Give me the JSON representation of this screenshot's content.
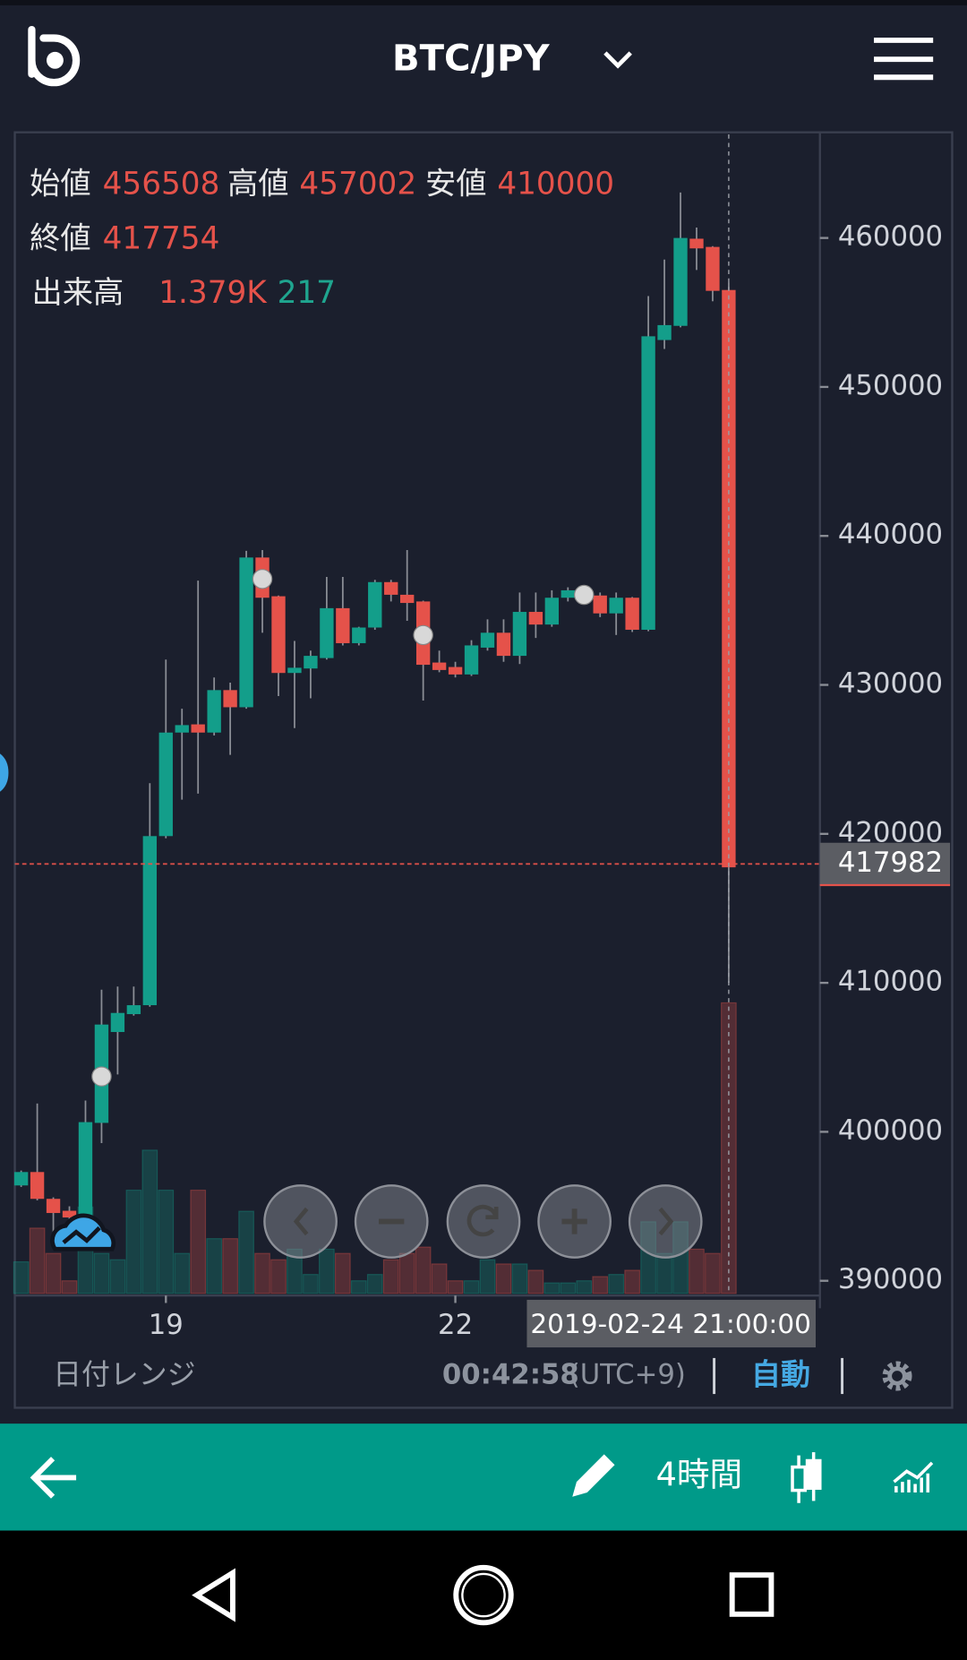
{
  "header": {
    "title": "BTC/JPY"
  },
  "info": {
    "open_label": "始値",
    "high_label": "高値",
    "low_label": "安値",
    "close_label": "終値",
    "volume_label": "出来高"
  },
  "footer": {
    "range_label": "日付レンジ",
    "countdown": "00:42:58",
    "timezone": "(UTC+9)",
    "scale_mode": "自動"
  },
  "toolbar": {
    "interval": "4時間"
  },
  "chart_data": {
    "type": "candlestick",
    "categories": [
      null,
      null,
      null,
      null,
      null,
      null,
      null,
      null,
      null,
      "19",
      null,
      null,
      null,
      null,
      null,
      null,
      null,
      null,
      null,
      null,
      null,
      null,
      null,
      null,
      null,
      null,
      null,
      "22",
      null,
      null,
      null,
      null,
      null,
      null,
      null,
      null,
      null,
      null,
      null,
      null,
      null,
      null,
      null,
      null,
      null
    ],
    "open": [
      396400,
      397300,
      395500,
      394700,
      394250,
      400600,
      406700,
      407900,
      408500,
      419850,
      426800,
      427350,
      426800,
      429650,
      428500,
      438550,
      435950,
      430800,
      431100,
      431800,
      435150,
      432800,
      433850,
      436900,
      436050,
      435600,
      431500,
      431200,
      430700,
      432500,
      433500,
      431950,
      434900,
      434050,
      435850,
      435900,
      436000,
      434800,
      435850,
      433700,
      453150,
      454100,
      459950,
      459400,
      456508
    ],
    "high": [
      397400,
      401900,
      395600,
      395000,
      402100,
      409540,
      409750,
      409750,
      423400,
      431700,
      428400,
      437000,
      430500,
      430150,
      439000,
      439050,
      436000,
      432950,
      432300,
      437250,
      437250,
      433900,
      437050,
      437050,
      439050,
      435650,
      432300,
      431550,
      433000,
      434400,
      434400,
      436200,
      436200,
      436350,
      436550,
      436550,
      436200,
      436200,
      435900,
      456100,
      458550,
      463050,
      460700,
      459450,
      457002
    ],
    "low": [
      396300,
      395400,
      393200,
      392800,
      393500,
      399240,
      403850,
      407800,
      408400,
      419700,
      422300,
      422700,
      426600,
      425300,
      428400,
      433500,
      429250,
      427100,
      429100,
      431700,
      432650,
      432650,
      433700,
      435600,
      434300,
      428950,
      430850,
      430500,
      430600,
      432300,
      431550,
      431400,
      433150,
      433900,
      435600,
      435700,
      434550,
      433350,
      433550,
      433600,
      452550,
      454000,
      457850,
      455750,
      410000
    ],
    "close": [
      397300,
      395500,
      394550,
      394250,
      400650,
      407200,
      407980,
      408500,
      419850,
      426800,
      427300,
      426800,
      429650,
      428500,
      438550,
      435850,
      430800,
      431150,
      431950,
      435150,
      432800,
      433850,
      436900,
      436050,
      435500,
      431350,
      431000,
      430700,
      432650,
      433500,
      431950,
      434900,
      434050,
      435850,
      436350,
      436250,
      434800,
      435850,
      433700,
      453400,
      454150,
      460000,
      459300,
      456450,
      417754
    ],
    "volume": {
      "values": [
        150,
        310,
        190,
        60,
        410,
        190,
        160,
        490,
        680,
        490,
        190,
        490,
        260,
        260,
        390,
        190,
        160,
        210,
        90,
        210,
        190,
        60,
        90,
        160,
        190,
        220,
        140,
        60,
        60,
        160,
        140,
        140,
        110,
        50,
        50,
        60,
        80,
        90,
        110,
        340,
        190,
        340,
        210,
        190,
        1379
      ],
      "value_labels": [
        null,
        null,
        null,
        null,
        null,
        null,
        null,
        null,
        null,
        null,
        null,
        null,
        null,
        null,
        null,
        null,
        null,
        null,
        null,
        null,
        null,
        null,
        null,
        null,
        null,
        null,
        null,
        null,
        null,
        null,
        null,
        null,
        null,
        null,
        null,
        null,
        null,
        null,
        null,
        null,
        null,
        null,
        null,
        null,
        "1.379K"
      ],
      "lim": [
        0,
        5500
      ]
    },
    "volume_ma": 217,
    "current_price": 417982,
    "crosshair_time": "2019-02-24 21:00:00",
    "ylim": [
      389150,
      466950
    ],
    "yticks": [
      390000,
      400000,
      410000,
      420000,
      430000,
      440000,
      450000,
      460000
    ],
    "up_color": "#139e8a",
    "down_color": "#e5524a"
  }
}
